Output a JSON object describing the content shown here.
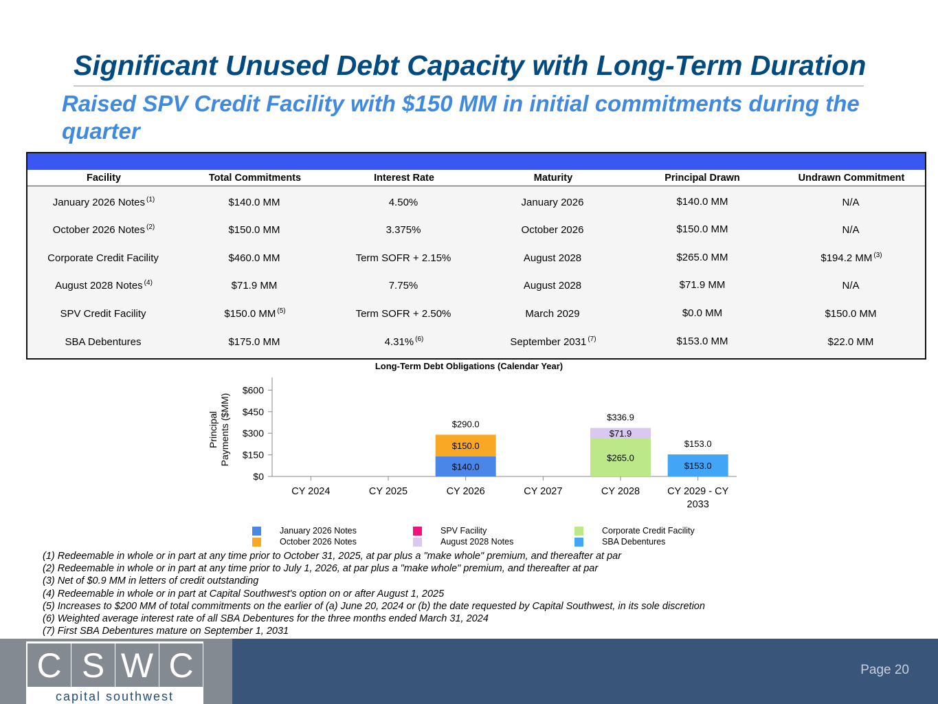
{
  "header": {
    "title": "Significant Unused Debt Capacity with Long-Term Duration",
    "subtitle": "Raised SPV Credit Facility with $150 MM in initial commitments during the quarter"
  },
  "table": {
    "columns": [
      "Facility",
      "Total Commitments",
      "Interest Rate",
      "Maturity",
      "Principal Drawn",
      "Undrawn Commitment"
    ],
    "rows": [
      {
        "facility": "January 2026 Notes",
        "facility_note": "(1)",
        "commitments": "$140.0 MM",
        "commitments_note": "",
        "rate": "4.50%",
        "rate_note": "",
        "maturity": "January 2026",
        "maturity_note": "",
        "drawn": "$140.0 MM",
        "undrawn": "N/A",
        "undrawn_note": ""
      },
      {
        "facility": "October 2026 Notes",
        "facility_note": "(2)",
        "commitments": "$150.0 MM",
        "commitments_note": "",
        "rate": "3.375%",
        "rate_note": "",
        "maturity": "October 2026",
        "maturity_note": "",
        "drawn": "$150.0 MM",
        "undrawn": "N/A",
        "undrawn_note": ""
      },
      {
        "facility": "Corporate Credit Facility",
        "facility_note": "",
        "commitments": "$460.0 MM",
        "commitments_note": "",
        "rate": "Term SOFR + 2.15%",
        "rate_note": "",
        "maturity": "August 2028",
        "maturity_note": "",
        "drawn": "$265.0 MM",
        "undrawn": "$194.2 MM",
        "undrawn_note": "(3)"
      },
      {
        "facility": "August 2028 Notes",
        "facility_note": "(4)",
        "commitments": "$71.9 MM",
        "commitments_note": "",
        "rate": "7.75%",
        "rate_note": "",
        "maturity": "August 2028",
        "maturity_note": "",
        "drawn": "$71.9 MM",
        "undrawn": "N/A",
        "undrawn_note": ""
      },
      {
        "facility": "SPV Credit Facility",
        "facility_note": "",
        "commitments": "$150.0 MM",
        "commitments_note": "(5)",
        "rate": "Term SOFR + 2.50%",
        "rate_note": "",
        "maturity": "March 2029",
        "maturity_note": "",
        "drawn": "$0.0 MM",
        "undrawn": "$150.0 MM",
        "undrawn_note": ""
      },
      {
        "facility": "SBA Debentures",
        "facility_note": "",
        "commitments": "$175.0 MM",
        "commitments_note": "",
        "rate": "4.31%",
        "rate_note": "(6)",
        "maturity": "September 2031",
        "maturity_note": "(7)",
        "drawn": "$153.0 MM",
        "undrawn": "$22.0 MM",
        "undrawn_note": ""
      }
    ]
  },
  "chart_data": {
    "type": "bar",
    "stacked": true,
    "title": "Long-Term Debt Obligations (Calendar Year)",
    "ylabel": "Principal Payments ($MM)",
    "xlabel": "",
    "ylim": [
      0,
      650
    ],
    "yticks": [
      0,
      150,
      300,
      450,
      600
    ],
    "ytick_labels": [
      "$0",
      "$150",
      "$300",
      "$450",
      "$600"
    ],
    "categories": [
      "CY 2024",
      "CY 2025",
      "CY 2026",
      "CY 2027",
      "CY 2028",
      "CY 2029 - CY 2033"
    ],
    "series": [
      {
        "name": "January 2026 Notes",
        "color": "#4a86e8",
        "values": [
          0,
          0,
          140.0,
          0,
          0,
          0
        ]
      },
      {
        "name": "October 2026 Notes",
        "color": "#f9a825",
        "values": [
          0,
          0,
          150.0,
          0,
          0,
          0
        ]
      },
      {
        "name": "SPV Facility",
        "color": "#f0127a",
        "values": [
          0,
          0,
          0,
          0,
          0,
          0
        ]
      },
      {
        "name": "August 2028 Notes",
        "color": "#d9c8f0",
        "values": [
          0,
          0,
          0,
          0,
          71.9,
          0
        ]
      },
      {
        "name": "Corporate Credit Facility",
        "color": "#bde88a",
        "values": [
          0,
          0,
          0,
          0,
          265.0,
          0
        ]
      },
      {
        "name": "SBA Debentures",
        "color": "#42a5f5",
        "values": [
          0,
          0,
          0,
          0,
          0,
          153.0
        ]
      }
    ],
    "totals": [
      null,
      null,
      290.0,
      null,
      336.9,
      153.0
    ],
    "total_labels": [
      "",
      "",
      "$290.0",
      "",
      "$336.9",
      "$153.0"
    ],
    "segment_labels": [
      {
        "category": "CY 2026",
        "series": "January 2026 Notes",
        "label": "$140.0"
      },
      {
        "category": "CY 2026",
        "series": "October 2026 Notes",
        "label": "$150.0"
      },
      {
        "category": "CY 2028",
        "series": "Corporate Credit Facility",
        "label": "$265.0"
      },
      {
        "category": "CY 2028",
        "series": "August 2028 Notes",
        "label": "$71.9"
      },
      {
        "category": "CY 2029 - CY 2033",
        "series": "SBA Debentures",
        "label": "$153.0"
      }
    ],
    "legend_position": "bottom",
    "grid": false
  },
  "notes": [
    "(1) Redeemable in whole or in part at any time prior to October 31, 2025, at par plus a \"make whole\" premium, and thereafter at par",
    "(2) Redeemable in whole or in part at any time prior to July 1, 2026, at par plus a \"make whole\" premium, and thereafter at par",
    "(3) Net of $0.9 MM in letters of credit outstanding",
    "(4) Redeemable in whole or in part at Capital Southwest's option on or after August 1, 2025",
    "(5) Increases to $200 MM of total commitments on the earlier of (a) June 20, 2024 or (b) the date requested by Capital Southwest, in its sole discretion",
    "(6) Weighted average interest rate of all SBA Debentures for the three months ended March 31, 2024",
    "(7) First SBA Debentures mature on September 1, 2031"
  ],
  "footer": {
    "logo_letters": [
      "C",
      "S",
      "W",
      "C"
    ],
    "logo_name": "capital southwest",
    "page_label": "Page 20"
  }
}
